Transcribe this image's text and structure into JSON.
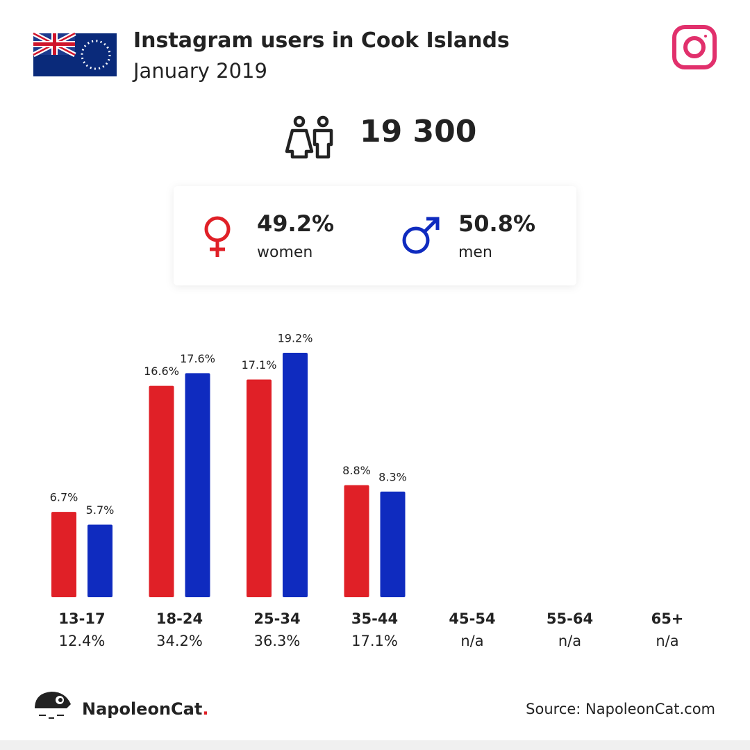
{
  "header": {
    "title": "Instagram users in Cook Islands",
    "subtitle": "January 2019"
  },
  "total_users": "19 300",
  "gender": [
    {
      "share": "49.2%"
    },
    {
      "share": "50.8%"
    }
  ],
  "chart_data": {
    "type": "bar",
    "categories": [
      "13-17",
      "18-24",
      "25-34",
      "35-44",
      "45-54",
      "55-64",
      "65+"
    ],
    "category_totals": [
      "12.4%",
      "34.2%",
      "36.3%",
      "17.1%",
      "n/a",
      "n/a",
      "n/a"
    ],
    "series": [
      {
        "name": "women",
        "color": "#e02027",
        "values": [
          6.7,
          16.6,
          17.1,
          8.8,
          null,
          null,
          null
        ],
        "value_labels": [
          "6.7%",
          "16.6%",
          "17.1%",
          "8.8%",
          null,
          null,
          null
        ]
      },
      {
        "name": "men",
        "color": "#0f2bbf",
        "values": [
          5.7,
          17.6,
          19.2,
          8.3,
          null,
          null,
          null
        ],
        "value_labels": [
          "5.7%",
          "17.6%",
          "19.2%",
          "8.3%",
          null,
          null,
          null
        ]
      }
    ]
  },
  "footer": {
    "brand": "NapoleonCat",
    "brand_dot": ".",
    "source": "Source: NapoleonCat.com"
  }
}
